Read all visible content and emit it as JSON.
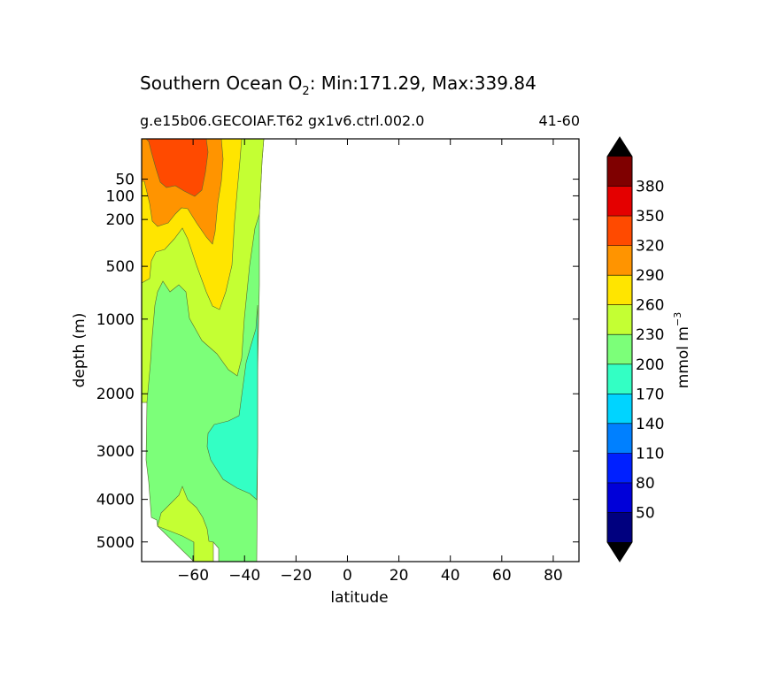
{
  "chart_data": {
    "type": "contour",
    "title": "Southern Ocean O",
    "title_subscript": "2",
    "title_suffix": ": Min:171.29, Max:339.84",
    "subtitle_left": "g.e15b06.GECOIAF.T62 gx1v6.ctrl.002.0",
    "subtitle_right": "41-60",
    "xlabel": "latitude",
    "ylabel": "depth (m)",
    "xlim": [
      -80,
      90
    ],
    "x_ticks": [
      -60,
      -40,
      -20,
      0,
      20,
      40,
      60,
      80
    ],
    "x_tick_labels": [
      "−60",
      "−40",
      "−20",
      "0",
      "20",
      "40",
      "60",
      "80"
    ],
    "y_scale": "sqrt",
    "ylim": [
      5500,
      0
    ],
    "y_ticks": [
      50,
      100,
      200,
      500,
      1000,
      2000,
      3000,
      4000,
      5000
    ],
    "y_tick_labels": [
      "50",
      "100",
      "200",
      "500",
      "1000",
      "2000",
      "3000",
      "4000",
      "5000"
    ],
    "colorbar": {
      "label": "mmol m",
      "label_superscript": "−3",
      "levels": [
        50,
        80,
        110,
        140,
        170,
        200,
        230,
        260,
        290,
        320,
        350,
        380
      ],
      "level_labels": [
        "50",
        "80",
        "110",
        "140",
        "170",
        "200",
        "230",
        "260",
        "290",
        "320",
        "350",
        "380"
      ],
      "colors": [
        "#00007f",
        "#0000d9",
        "#0020ff",
        "#0080ff",
        "#00d4ff",
        "#33ffc4",
        "#7cff79",
        "#c4ff33",
        "#ffe500",
        "#ff9400",
        "#ff4a00",
        "#e40000",
        "#7f0000"
      ],
      "extend": "both",
      "extend_color": "#000000"
    },
    "data_extent_latitude": [
      -78,
      -33
    ],
    "contour_regions": [
      {
        "range": "290-320",
        "color": "#ff9400",
        "location": "near surface, -78 to -60"
      },
      {
        "range": "320-350",
        "color": "#ff4a00",
        "location": "surface core, -76 to -62, 0-90 m"
      },
      {
        "range": "260-290",
        "color": "#ffe500",
        "location": "upper ocean, -78 to -45"
      },
      {
        "range": "230-260",
        "color": "#c4ff33",
        "location": "north flank and deep pocket near -60, 4000-5500 m"
      },
      {
        "range": "200-230",
        "color": "#7cff79",
        "location": "intermediate and deep water"
      },
      {
        "range": "170-200",
        "color": "#33ffc4",
        "location": "mid-depth minimum near -45 to -33"
      }
    ]
  }
}
